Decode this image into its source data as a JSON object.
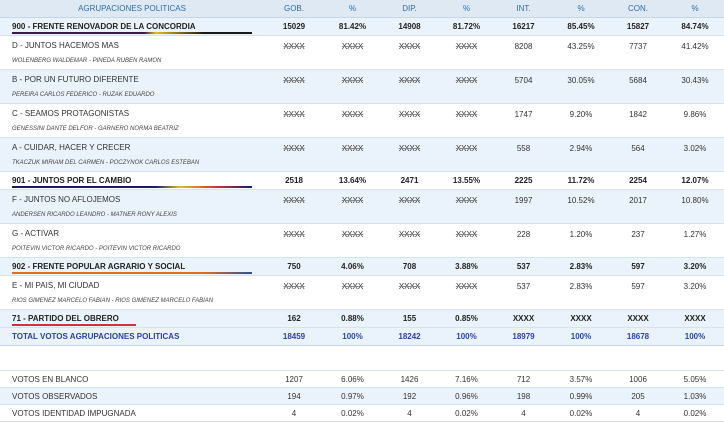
{
  "headers": [
    "AGRUPACIONES POLITICAS",
    "GOB.",
    "%",
    "DIP.",
    "%",
    "INT.",
    "%",
    "CON.",
    "%"
  ],
  "p900": {
    "name": "900 - FRENTE RENOVADOR DE LA CONCORDIA",
    "v": [
      "15029",
      "81.42%",
      "14908",
      "81.72%",
      "16217",
      "85.45%",
      "15827",
      "84.74%"
    ]
  },
  "lD": {
    "name": "D - JUNTOS HACEMOS MAS",
    "cands": "WOLENBERG WALDEMAR - PINEDA RUBEN RAMON",
    "v": [
      "XXXX",
      "XXXX",
      "XXXX",
      "XXXX",
      "8208",
      "43.25%",
      "7737",
      "41.42%"
    ]
  },
  "lB": {
    "name": "B - POR UN FUTURO DIFERENTE",
    "cands": "PEREIRA CARLOS FEDERICO - RUZAK EDUARDO",
    "v": [
      "XXXX",
      "XXXX",
      "XXXX",
      "XXXX",
      "5704",
      "30.05%",
      "5684",
      "30.43%"
    ]
  },
  "lC": {
    "name": "C - SEAMOS PROTAGONISTAS",
    "cands": "GENESSINI DANTE DELFOR - GARNERO NORMA BEATRIZ",
    "v": [
      "XXXX",
      "XXXX",
      "XXXX",
      "XXXX",
      "1747",
      "9.20%",
      "1842",
      "9.86%"
    ]
  },
  "lA": {
    "name": "A - CUIDAR, HACER Y CRECER",
    "cands": "TKACZUK MIRIAM DEL CARMEN - POCZYNOK CARLOS ESTEBAN",
    "v": [
      "XXXX",
      "XXXX",
      "XXXX",
      "XXXX",
      "558",
      "2.94%",
      "564",
      "3.02%"
    ]
  },
  "p901": {
    "name": "901 - JUNTOS POR EL CAMBIO",
    "v": [
      "2518",
      "13.64%",
      "2471",
      "13.55%",
      "2225",
      "11.72%",
      "2254",
      "12.07%"
    ]
  },
  "lF": {
    "name": "F - JUNTOS NO AFLOJEMOS",
    "cands": "ANDERSEN RICARDO LEANDRO - MATNER RONY ALEXIS",
    "v": [
      "XXXX",
      "XXXX",
      "XXXX",
      "XXXX",
      "1997",
      "10.52%",
      "2017",
      "10.80%"
    ]
  },
  "lG": {
    "name": "G - ACTIVAR",
    "cands": "POITEVIN VICTOR RICARDO - POITEVIN VICTOR RICARDO",
    "v": [
      "XXXX",
      "XXXX",
      "XXXX",
      "XXXX",
      "228",
      "1.20%",
      "237",
      "1.27%"
    ]
  },
  "p902": {
    "name": "902 - FRENTE POPULAR AGRARIO Y SOCIAL",
    "v": [
      "750",
      "4.06%",
      "708",
      "3.88%",
      "537",
      "2.83%",
      "597",
      "3.20%"
    ]
  },
  "lE": {
    "name": "E - MI PAIS, MI CIUDAD",
    "cands": "RIOS GIMENEZ MARCELO FABIAN - RIOS GIMENEZ MARCELO FABIAN",
    "v": [
      "XXXX",
      "XXXX",
      "XXXX",
      "XXXX",
      "537",
      "2.83%",
      "597",
      "3.20%"
    ]
  },
  "p71": {
    "name": "71 - PARTIDO DEL OBRERO",
    "v": [
      "162",
      "0.88%",
      "155",
      "0.85%",
      "XXXX",
      "XXXX",
      "XXXX",
      "XXXX"
    ]
  },
  "total": {
    "name": "TOTAL VOTOS AGRUPACIONES POLITICAS",
    "v": [
      "18459",
      "100%",
      "18242",
      "100%",
      "18979",
      "100%",
      "18678",
      "100%"
    ]
  },
  "blanco": {
    "name": "VOTOS EN BLANCO",
    "v": [
      "1207",
      "6.06%",
      "1426",
      "7.16%",
      "712",
      "3.57%",
      "1006",
      "5.05%"
    ]
  },
  "observ": {
    "name": "VOTOS OBSERVADOS",
    "v": [
      "194",
      "0.97%",
      "192",
      "0.96%",
      "198",
      "0.99%",
      "205",
      "1.03%"
    ]
  },
  "impug": {
    "name": "VOTOS IDENTIDAD IMPUGNADA",
    "v": [
      "4",
      "0.02%",
      "4",
      "0.02%",
      "4",
      "0.02%",
      "4",
      "0.02%"
    ]
  },
  "colors": {
    "p900": "#3a1a4a",
    "p901": "#1a1a6a",
    "p902": "#e07020",
    "p71": "#d03040",
    "header_text": "#2f6ea5",
    "total_text": "#2a3fb8"
  }
}
